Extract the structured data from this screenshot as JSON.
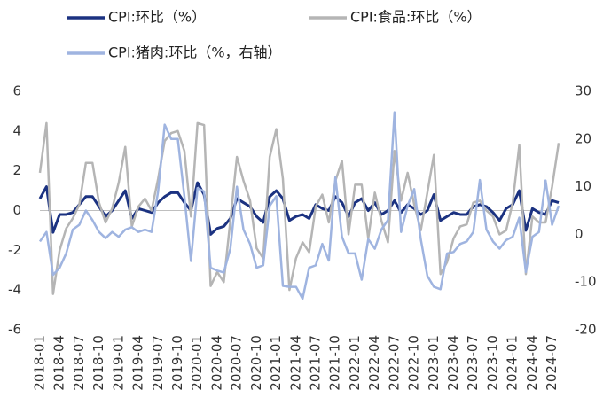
{
  "chart_data": {
    "type": "line",
    "categories": [
      "2018-01",
      null,
      null,
      "2018-04",
      null,
      null,
      "2018-07",
      null,
      null,
      "2018-10",
      null,
      null,
      "2019-01",
      null,
      null,
      "2019-04",
      null,
      null,
      "2019-07",
      null,
      null,
      "2019-10",
      null,
      null,
      "2020-01",
      null,
      null,
      "2020-04",
      null,
      null,
      "2020-07",
      null,
      null,
      "2020-10",
      null,
      null,
      "2021-01",
      null,
      null,
      "2021-04",
      null,
      null,
      "2021-07",
      null,
      null,
      "2021-10",
      null,
      null,
      "2022-01",
      null,
      null,
      "2022-04",
      null,
      null,
      "2022-07",
      null,
      null,
      "2022-10",
      null,
      null,
      "2023-01",
      null,
      null,
      "2023-04",
      null,
      null,
      "2023-07",
      null,
      null,
      "2023-10",
      null,
      null,
      "2024-01",
      null,
      null,
      "2024-04",
      null,
      null,
      "2024-07",
      null
    ],
    "series": [
      {
        "name": "CPI:环比（%）",
        "color": "#1b3281",
        "values": [
          0.6,
          1.2,
          -1.1,
          -0.2,
          -0.2,
          -0.1,
          0.3,
          0.7,
          0.7,
          0.2,
          -0.3,
          0.0,
          0.5,
          1.0,
          -0.4,
          0.1,
          0.0,
          -0.1,
          0.4,
          0.7,
          0.9,
          0.9,
          0.4,
          0.0,
          1.4,
          0.8,
          -1.2,
          -0.9,
          -0.8,
          -0.4,
          0.6,
          0.4,
          0.2,
          -0.3,
          -0.6,
          0.7,
          1.0,
          0.6,
          -0.5,
          -0.3,
          -0.2,
          -0.4,
          0.3,
          0.1,
          0.0,
          0.7,
          0.4,
          -0.3,
          0.4,
          0.6,
          0.0,
          0.4,
          -0.2,
          0.0,
          0.5,
          -0.1,
          0.3,
          0.1,
          -0.2,
          0.0,
          0.8,
          -0.5,
          -0.3,
          -0.1,
          -0.2,
          -0.2,
          0.2,
          0.3,
          0.2,
          -0.1,
          -0.5,
          0.1,
          0.3,
          1.0,
          -1.0,
          0.1,
          -0.1,
          -0.2,
          0.5,
          0.4
        ]
      },
      {
        "name": "CPI:食品:环比（%）",
        "color": "#b5b5b5",
        "values": [
          1.9,
          4.4,
          -4.2,
          -2.0,
          -0.9,
          -0.4,
          0.3,
          2.4,
          2.4,
          0.4,
          -0.6,
          0.1,
          1.4,
          3.2,
          -0.8,
          0.2,
          0.6,
          0.0,
          1.6,
          3.5,
          3.9,
          4.0,
          3.0,
          -0.3,
          4.4,
          4.3,
          -3.8,
          -3.1,
          -3.6,
          -0.5,
          2.7,
          1.5,
          0.5,
          -1.9,
          -2.4,
          2.7,
          4.1,
          1.6,
          -4.0,
          -2.4,
          -1.6,
          -2.1,
          0.2,
          0.8,
          -0.6,
          1.5,
          2.5,
          -1.2,
          1.3,
          1.3,
          -1.4,
          0.9,
          -0.5,
          -1.6,
          3.0,
          0.5,
          1.9,
          0.3,
          -1.0,
          0.9,
          2.8,
          -3.2,
          -2.6,
          -1.4,
          -0.8,
          -0.7,
          0.4,
          0.5,
          0.0,
          -0.3,
          -1.2,
          -1.0,
          0.4,
          3.3,
          -3.2,
          -0.3,
          -0.6,
          -0.6,
          1.2,
          3.4
        ]
      },
      {
        "name": "CPI:猪肉:环比（%，右轴）",
        "color": "#9fb4e0",
        "axis": "y2",
        "values": [
          -1.5,
          0.5,
          -8.5,
          -7,
          -4,
          1,
          2,
          5,
          3,
          0.5,
          -0.8,
          0.5,
          -0.5,
          1,
          1.5,
          0.5,
          1,
          0.5,
          9,
          23,
          20,
          20,
          8,
          -5.6,
          9.7,
          9,
          -7,
          -7.6,
          -8,
          -3,
          10,
          1,
          -2,
          -7,
          -6.5,
          6,
          8,
          -10.8,
          -11,
          -11,
          -13.5,
          -7,
          -6.5,
          -2,
          -5.5,
          12,
          -0.5,
          -4,
          -4,
          -9.5,
          -1,
          -3,
          1,
          3,
          25.6,
          0.5,
          6,
          9.5,
          -1,
          -8.7,
          -11,
          -11.5,
          -4,
          -3.7,
          -2,
          -1.5,
          0.5,
          11.4,
          1,
          -1.5,
          -3,
          -1.2,
          -0.5,
          3.5,
          -7.9,
          -0.5,
          0.5,
          11.3,
          2,
          6
        ]
      }
    ],
    "ylim": [
      -6,
      6
    ],
    "yticks": [
      -6,
      -4,
      -2,
      0,
      2,
      4,
      6
    ],
    "y2lim": [
      -20,
      30
    ],
    "y2ticks": [
      -20,
      -10,
      0,
      10,
      20,
      30
    ]
  }
}
